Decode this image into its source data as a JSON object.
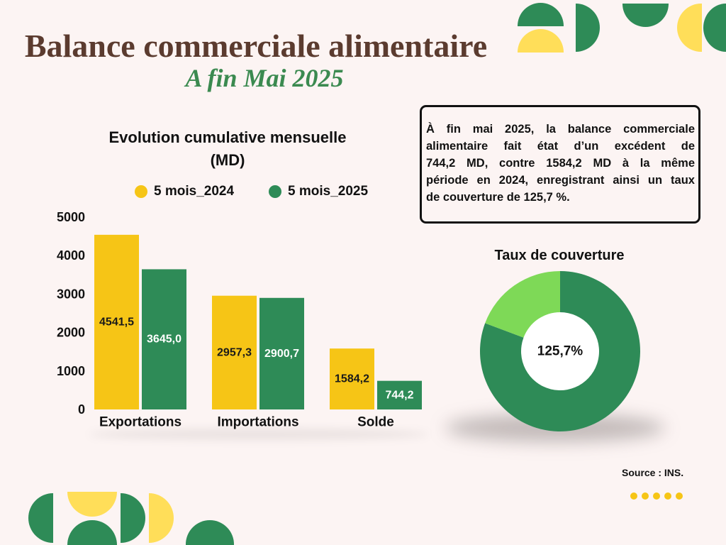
{
  "header": {
    "title": "Balance commerciale alimentaire",
    "subtitle": "A fin Mai 2025"
  },
  "info_box": {
    "lines": [
      "À fin mai 2025, la balance commerciale",
      "alimentaire fait état d’un excédent de",
      "744,2 MD, contre 1584,2 MD à la même",
      "période en 2024, enregistrant ainsi un taux",
      "de couverture de 125,7 %."
    ]
  },
  "chart_data": [
    {
      "type": "bar",
      "title": "Evolution cumulative mensuelle (MD)",
      "categories": [
        "Exportations",
        "Importations",
        "Solde"
      ],
      "series": [
        {
          "name": "5 mois_2024",
          "color": "#F6C516",
          "label_color": "#1A1A1A",
          "values": [
            4541.5,
            2957.3,
            1584.2
          ],
          "labels": [
            "4541,5",
            "2957,3",
            "1584,2"
          ]
        },
        {
          "name": "5 mois_2025",
          "color": "#2E8B57",
          "label_color": "#FFFFFF",
          "values": [
            3645.0,
            2900.7,
            744.2
          ],
          "labels": [
            "3645,0",
            "2900,7",
            "744,2"
          ]
        }
      ],
      "ylim": [
        0,
        5000
      ],
      "yticks": [
        0,
        1000,
        2000,
        3000,
        4000,
        5000
      ],
      "grid": false,
      "legend": "top"
    },
    {
      "type": "pie",
      "donut": true,
      "title": "Taux de couverture",
      "center_label": "125,7%",
      "values": [
        80.7,
        19.3
      ],
      "colors": [
        "#2E8B57",
        "#7ED957"
      ]
    }
  ],
  "footer": {
    "source": "Source : INS."
  },
  "colors": {
    "background": "#FCF4F3",
    "title": "#5B3B2F",
    "subtitle": "#3B8A50",
    "accent_yellow": "#F6C516",
    "accent_green": "#2E8B57",
    "decor_yellow": "#FFDE59"
  }
}
